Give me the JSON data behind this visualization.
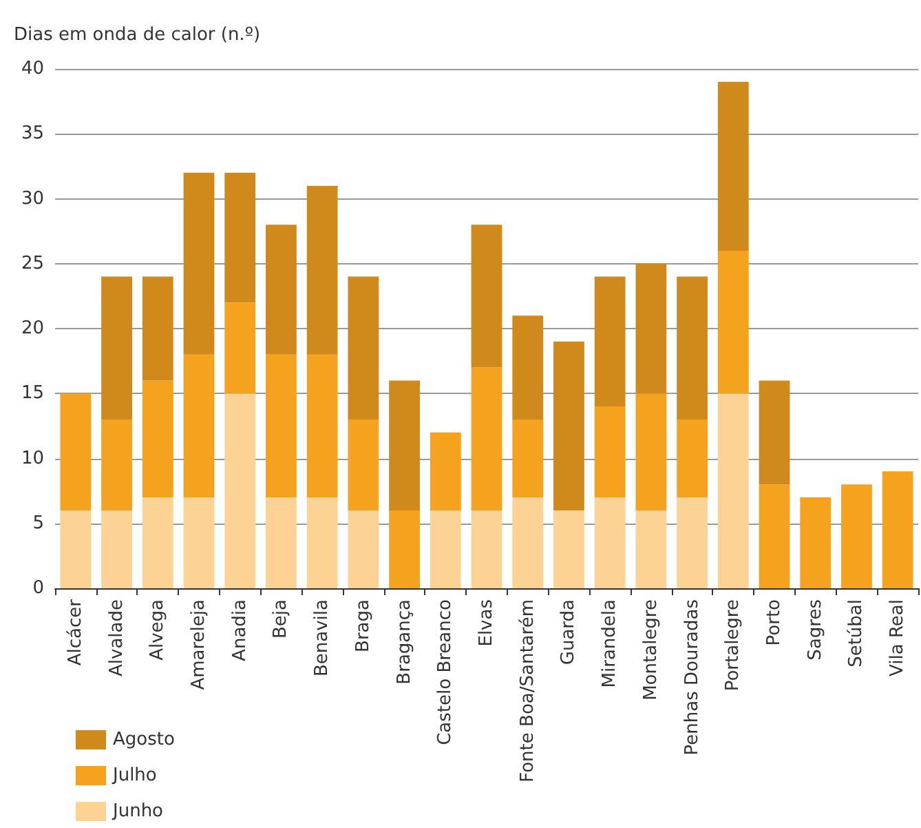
{
  "chart_data": {
    "type": "bar",
    "stacked": true,
    "ylabel": "Dias em onda de calor (n.º)",
    "categories": [
      "Alcácer",
      "Alvalade",
      "Alvega",
      "Amareleja",
      "Anadia",
      "Beja",
      "Benavila",
      "Braga",
      "Bragança",
      "Castelo Breanco",
      "Elvas",
      "Fonte Boa/Santarém",
      "Guarda",
      "Mirandela",
      "Montalegre",
      "Penhas Douradas",
      "Portalegre",
      "Porto",
      "Sagres",
      "Setúbal",
      "Vila Real"
    ],
    "series": [
      {
        "name": "Junho",
        "color": "#fcd395",
        "values": [
          6,
          6,
          7,
          7,
          15,
          7,
          7,
          6,
          0,
          6,
          6,
          7,
          6,
          7,
          6,
          7,
          15,
          0,
          0,
          0,
          0
        ]
      },
      {
        "name": "Julho",
        "color": "#f5a31f",
        "values": [
          9,
          7,
          9,
          11,
          7,
          11,
          11,
          7,
          6,
          6,
          11,
          6,
          0,
          7,
          9,
          6,
          11,
          8,
          7,
          8,
          9
        ]
      },
      {
        "name": "Agosto",
        "color": "#d08a1c",
        "values": [
          0,
          11,
          8,
          14,
          10,
          10,
          13,
          11,
          10,
          0,
          11,
          8,
          13,
          10,
          10,
          11,
          13,
          8,
          0,
          0,
          0
        ]
      }
    ],
    "ylim": [
      0,
      40
    ],
    "yticks": [
      0,
      5,
      10,
      15,
      20,
      25,
      30,
      35,
      40
    ],
    "grid": "y",
    "legend": "bottom left"
  }
}
